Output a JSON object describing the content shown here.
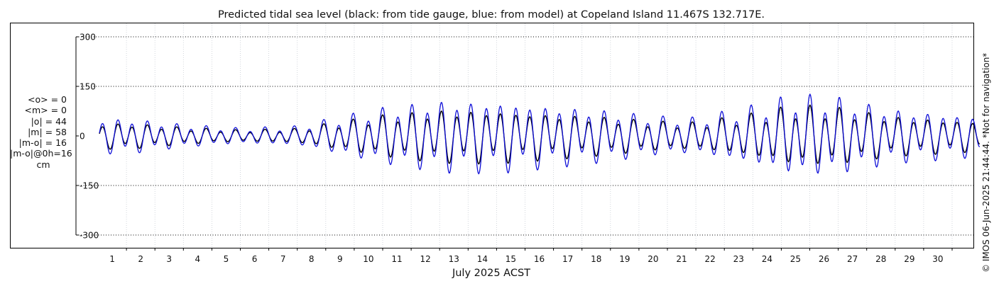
{
  "chart_data": {
    "type": "line",
    "title": "Predicted tidal sea level (black: from tide gauge, blue: from model) at Copeland Island 11.467S 132.717E.",
    "xlabel": "July 2025 ACST",
    "ylabel": "",
    "ylim": [
      -300,
      300
    ],
    "xlim_days": [
      0,
      31
    ],
    "yticks": [
      300,
      150,
      0,
      -150,
      -300
    ],
    "ytick_labels": [
      "300",
      "150",
      "0",
      "-150",
      "-300"
    ],
    "xtick_labels": [
      "1",
      "2",
      "3",
      "4",
      "5",
      "6",
      "7",
      "8",
      "9",
      "10",
      "11",
      "12",
      "13",
      "14",
      "15",
      "16",
      "17",
      "18",
      "19",
      "20",
      "21",
      "22",
      "23",
      "24",
      "25",
      "26",
      "27",
      "28",
      "29",
      "30"
    ],
    "grid": true,
    "series": [
      {
        "name": "tide gauge",
        "color": "#000000",
        "amp_scale": 0.74
      },
      {
        "name": "model",
        "color": "#1010d8",
        "amp_scale": 1.0
      }
    ],
    "semidiurnal_range_cm": [
      {
        "day": 0,
        "amp": 52
      },
      {
        "day": 1,
        "amp": 56
      },
      {
        "day": 3,
        "amp": 36
      },
      {
        "day": 5,
        "amp": 24
      },
      {
        "day": 7,
        "amp": 30
      },
      {
        "day": 8,
        "amp": 50
      },
      {
        "day": 10,
        "amp": 88
      },
      {
        "day": 12,
        "amp": 112
      },
      {
        "day": 14,
        "amp": 112
      },
      {
        "day": 16,
        "amp": 96
      },
      {
        "day": 18,
        "amp": 80
      },
      {
        "day": 19.5,
        "amp": 62
      },
      {
        "day": 21,
        "amp": 56
      },
      {
        "day": 23,
        "amp": 92
      },
      {
        "day": 24.5,
        "amp": 128
      },
      {
        "day": 26,
        "amp": 120
      },
      {
        "day": 28,
        "amp": 84
      },
      {
        "day": 31,
        "amp": 62
      }
    ],
    "stats": {
      "mean_obs": "<o> = 0",
      "mean_model": "<m> = 0",
      "abs_obs": "|o| = 44",
      "abs_model": "|m| = 58",
      "abs_diff": "|m-o| = 16",
      "abs_diff_0h": "|m-o|@0h=16",
      "unit": "cm"
    },
    "side_note": "© IMOS 06-Jun-2025 21:44:44. *Not for navigation*"
  }
}
